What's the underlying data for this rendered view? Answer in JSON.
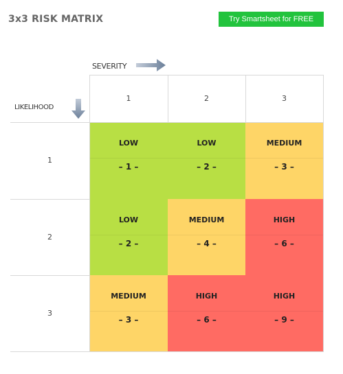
{
  "title": "3x3 RISK MATRIX",
  "cta_label": "Try Smartsheet for FREE",
  "severity_label": "SEVERITY",
  "likelihood_label": "LIKELIHOOD",
  "severity_levels": [
    "1",
    "2",
    "3"
  ],
  "likelihood_levels": [
    "1",
    "2",
    "3"
  ],
  "colors": {
    "low": "#b8df44",
    "medium": "#fed567",
    "high": "#ff6b63",
    "cta": "#22c33d"
  },
  "icons": {
    "severity_arrow": "arrow-right-icon",
    "likelihood_arrow": "arrow-down-icon"
  },
  "cells": [
    [
      {
        "level": "LOW",
        "score": "– 1 –",
        "tone": "green"
      },
      {
        "level": "LOW",
        "score": "– 2 –",
        "tone": "green"
      },
      {
        "level": "MEDIUM",
        "score": "– 3 –",
        "tone": "yellow"
      }
    ],
    [
      {
        "level": "LOW",
        "score": "– 2 –",
        "tone": "green"
      },
      {
        "level": "MEDIUM",
        "score": "– 4 –",
        "tone": "yellow"
      },
      {
        "level": "HIGH",
        "score": "– 6 –",
        "tone": "red"
      }
    ],
    [
      {
        "level": "MEDIUM",
        "score": "– 3 –",
        "tone": "yellow"
      },
      {
        "level": "HIGH",
        "score": "– 6 –",
        "tone": "red"
      },
      {
        "level": "HIGH",
        "score": "– 9 –",
        "tone": "red"
      }
    ]
  ]
}
